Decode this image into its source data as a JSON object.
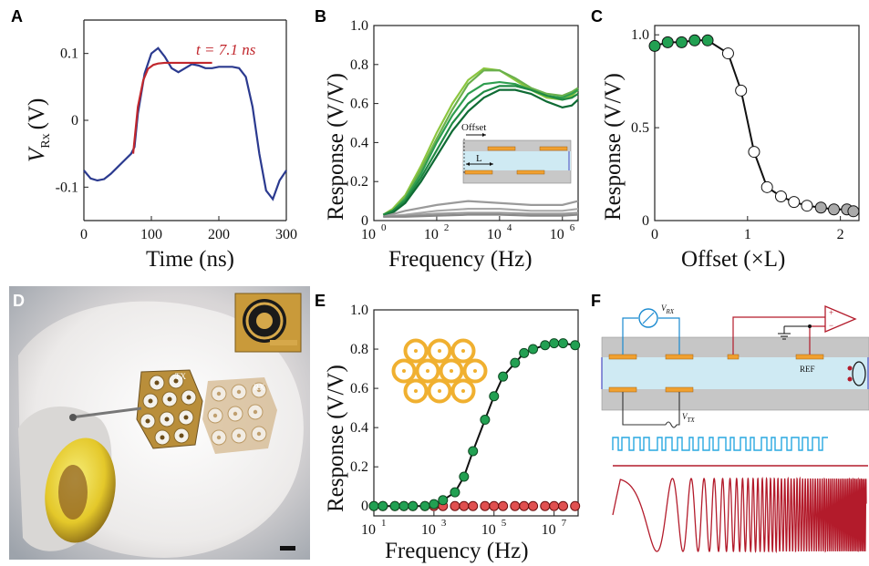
{
  "panels": {
    "a": {
      "letter": "A",
      "xlabel": "Time (ns)",
      "ylabel": "V",
      "ylabel_sub": "Rx",
      "ylabel_unit": "(V)",
      "annotation": "t = 7.1 ns",
      "xticks": [
        "0",
        "100",
        "200",
        "300"
      ],
      "yticks": [
        "0.1",
        "0",
        "-0.1"
      ]
    },
    "b": {
      "letter": "B",
      "xlabel": "Frequency (Hz)",
      "ylabel": "Response (V/V)",
      "yticks": [
        "0",
        "0.2",
        "0.4",
        "0.6",
        "0.8",
        "1.0"
      ],
      "xticks": [
        "10",
        "10",
        "10",
        "10"
      ],
      "xtick_exps": [
        "0",
        "2",
        "4",
        "6"
      ],
      "inset_offset_label": "Offset",
      "inset_L_label": "L"
    },
    "c": {
      "letter": "C",
      "xlabel": "Offset (×L)",
      "ylabel": "Response (V/V)",
      "xticks": [
        "0",
        "1",
        "2"
      ],
      "yticks": [
        "0",
        "0.5",
        "1.0"
      ]
    },
    "d": {
      "letter": "D",
      "tx_label": "TX",
      "rx_label": "RX"
    },
    "e": {
      "letter": "E",
      "xlabel": "Frequency (Hz)",
      "ylabel": "Response (V/V)",
      "yticks": [
        "0",
        "0.2",
        "0.4",
        "0.6",
        "0.8",
        "1.0"
      ],
      "xticks": [
        "10",
        "10",
        "10",
        "10"
      ],
      "xtick_exps": [
        "1",
        "3",
        "5",
        "7"
      ]
    },
    "f": {
      "letter": "F",
      "vrx_label": "V",
      "vrx_sub": "RX",
      "vtx_label": "V",
      "vtx_sub": "TX",
      "ref_label": "REF"
    }
  },
  "colors": {
    "blue_trace": "#2b3a8f",
    "red_fit": "#c1272d",
    "green_dot": "#22a052",
    "red_dot": "#e05050",
    "grey_dot": "#aaaaaa",
    "cyan_signal": "#29a8e0",
    "crimson_signal": "#b31b2b"
  },
  "chart_data": [
    {
      "panel": "A",
      "type": "line",
      "title": "",
      "xlabel": "Time (ns)",
      "ylabel": "V_Rx (V)",
      "xlim": [
        0,
        300
      ],
      "ylim": [
        -0.15,
        0.15
      ],
      "series": [
        {
          "x": [
            0,
            10,
            20,
            30,
            40,
            50,
            60,
            70,
            75,
            80,
            90,
            100,
            110,
            120,
            130,
            140,
            150,
            160,
            170,
            180,
            190,
            200,
            210,
            220,
            230,
            240,
            250,
            260,
            270,
            280,
            290,
            300
          ],
          "y": [
            -0.075,
            -0.087,
            -0.09,
            -0.088,
            -0.08,
            -0.07,
            -0.06,
            -0.05,
            -0.04,
            0.01,
            0.07,
            0.1,
            0.108,
            0.095,
            0.078,
            0.072,
            0.078,
            0.084,
            0.082,
            0.078,
            0.078,
            0.08,
            0.08,
            0.08,
            0.078,
            0.065,
            0.02,
            -0.05,
            -0.105,
            -0.118,
            -0.09,
            -0.075
          ]
        },
        {
          "name": "t = 7.1 ns",
          "x": [
            73,
            80,
            88,
            95,
            103,
            110,
            120,
            140,
            170,
            190
          ],
          "y": [
            -0.05,
            0.02,
            0.06,
            0.077,
            0.083,
            0.085,
            0.086,
            0.086,
            0.086,
            0.086
          ]
        }
      ]
    },
    {
      "panel": "B",
      "type": "line",
      "title": "",
      "xlabel": "Frequency (Hz)",
      "ylabel": "Response (V/V)",
      "xscale": "log",
      "xlim_exp": [
        0,
        6.5
      ],
      "ylim": [
        0,
        1.0
      ],
      "series": [
        {
          "x_exp": [
            0.3,
            0.6,
            1,
            1.5,
            2,
            2.5,
            3,
            3.5,
            4,
            4.5,
            5,
            5.5,
            6,
            6.3,
            6.5
          ],
          "y": [
            0.03,
            0.06,
            0.13,
            0.28,
            0.45,
            0.6,
            0.72,
            0.78,
            0.77,
            0.72,
            0.67,
            0.63,
            0.62,
            0.64,
            0.67
          ]
        },
        {
          "x_exp": [
            0.3,
            0.6,
            1,
            1.5,
            2,
            2.5,
            3,
            3.5,
            4,
            4.5,
            5,
            5.5,
            6,
            6.3,
            6.5
          ],
          "y": [
            0.03,
            0.05,
            0.12,
            0.26,
            0.42,
            0.57,
            0.7,
            0.77,
            0.77,
            0.73,
            0.68,
            0.65,
            0.64,
            0.66,
            0.68
          ]
        },
        {
          "x_exp": [
            0.3,
            0.6,
            1,
            1.5,
            2,
            2.5,
            3,
            3.5,
            4,
            4.5,
            5,
            5.5,
            6,
            6.3,
            6.5
          ],
          "y": [
            0.03,
            0.05,
            0.11,
            0.24,
            0.4,
            0.54,
            0.65,
            0.7,
            0.71,
            0.7,
            0.67,
            0.64,
            0.63,
            0.65,
            0.67
          ]
        },
        {
          "x_exp": [
            0.3,
            0.6,
            1,
            1.5,
            2,
            2.5,
            3,
            3.5,
            4,
            4.5,
            5,
            5.5,
            6,
            6.3,
            6.5
          ],
          "y": [
            0.03,
            0.05,
            0.1,
            0.22,
            0.36,
            0.5,
            0.6,
            0.66,
            0.69,
            0.69,
            0.67,
            0.64,
            0.62,
            0.63,
            0.65
          ]
        },
        {
          "x_exp": [
            0.3,
            0.6,
            1,
            1.5,
            2,
            2.5,
            3,
            3.5,
            4,
            4.5,
            5,
            5.5,
            6,
            6.3,
            6.5
          ],
          "y": [
            0.02,
            0.04,
            0.09,
            0.2,
            0.33,
            0.46,
            0.56,
            0.63,
            0.67,
            0.67,
            0.65,
            0.61,
            0.58,
            0.59,
            0.62
          ]
        },
        {
          "x_exp": [
            0.3,
            1,
            2,
            3,
            4,
            5,
            6,
            6.5
          ],
          "y": [
            0.02,
            0.05,
            0.08,
            0.1,
            0.09,
            0.08,
            0.08,
            0.1
          ]
        },
        {
          "x_exp": [
            0.3,
            1,
            2,
            3,
            4,
            5,
            6,
            6.5
          ],
          "y": [
            0.02,
            0.03,
            0.05,
            0.06,
            0.06,
            0.05,
            0.05,
            0.06
          ]
        },
        {
          "x_exp": [
            0.3,
            1,
            2,
            3,
            4,
            5,
            6,
            6.5
          ],
          "y": [
            0.02,
            0.025,
            0.035,
            0.04,
            0.04,
            0.035,
            0.035,
            0.04
          ]
        },
        {
          "x_exp": [
            0.3,
            1,
            2,
            3,
            4,
            5,
            6,
            6.5
          ],
          "y": [
            0.02,
            0.02,
            0.025,
            0.03,
            0.03,
            0.025,
            0.025,
            0.03
          ]
        }
      ]
    },
    {
      "panel": "C",
      "type": "scatter",
      "title": "",
      "xlabel": "Offset (×L)",
      "ylabel": "Response (V/V)",
      "xlim": [
        0,
        2.2
      ],
      "ylim": [
        0,
        1.05
      ],
      "series": [
        {
          "x": [
            0,
            0.14,
            0.29,
            0.43,
            0.57,
            0.79,
            0.93,
            1.07,
            1.21,
            1.36,
            1.5,
            1.64,
            1.79,
            1.93,
            2.07,
            2.14
          ],
          "y": [
            0.94,
            0.96,
            0.96,
            0.97,
            0.97,
            0.9,
            0.7,
            0.37,
            0.18,
            0.13,
            0.1,
            0.08,
            0.07,
            0.06,
            0.06,
            0.05
          ]
        }
      ]
    },
    {
      "panel": "E",
      "type": "scatter",
      "title": "",
      "xlabel": "Frequency (Hz)",
      "ylabel": "Response (V/V)",
      "xscale": "log",
      "xlim_exp": [
        1,
        7.8
      ],
      "ylim": [
        -0.05,
        1.0
      ],
      "series": [
        {
          "x_exp": [
            1,
            1.3,
            1.7,
            2,
            2.3,
            2.7,
            3,
            3.3,
            3.7,
            4,
            4.3,
            4.7,
            5,
            5.3,
            5.7,
            6,
            6.3,
            6.7,
            7,
            7.3,
            7.7
          ],
          "y": [
            0,
            0,
            0,
            0,
            0,
            0,
            0.01,
            0.03,
            0.07,
            0.15,
            0.28,
            0.44,
            0.56,
            0.66,
            0.73,
            0.78,
            0.8,
            0.82,
            0.83,
            0.83,
            0.82
          ]
        },
        {
          "x_exp": [
            1,
            1.3,
            1.7,
            2,
            2.3,
            2.7,
            3,
            3.3,
            3.7,
            4,
            4.3,
            4.7,
            5,
            5.3,
            5.7,
            6,
            6.3,
            6.7,
            7,
            7.3,
            7.7
          ],
          "y": [
            0,
            0,
            0,
            0,
            0,
            0,
            0,
            0,
            0,
            0,
            0,
            0,
            0,
            0,
            0,
            0,
            0,
            0,
            0,
            0,
            0
          ]
        }
      ]
    }
  ]
}
